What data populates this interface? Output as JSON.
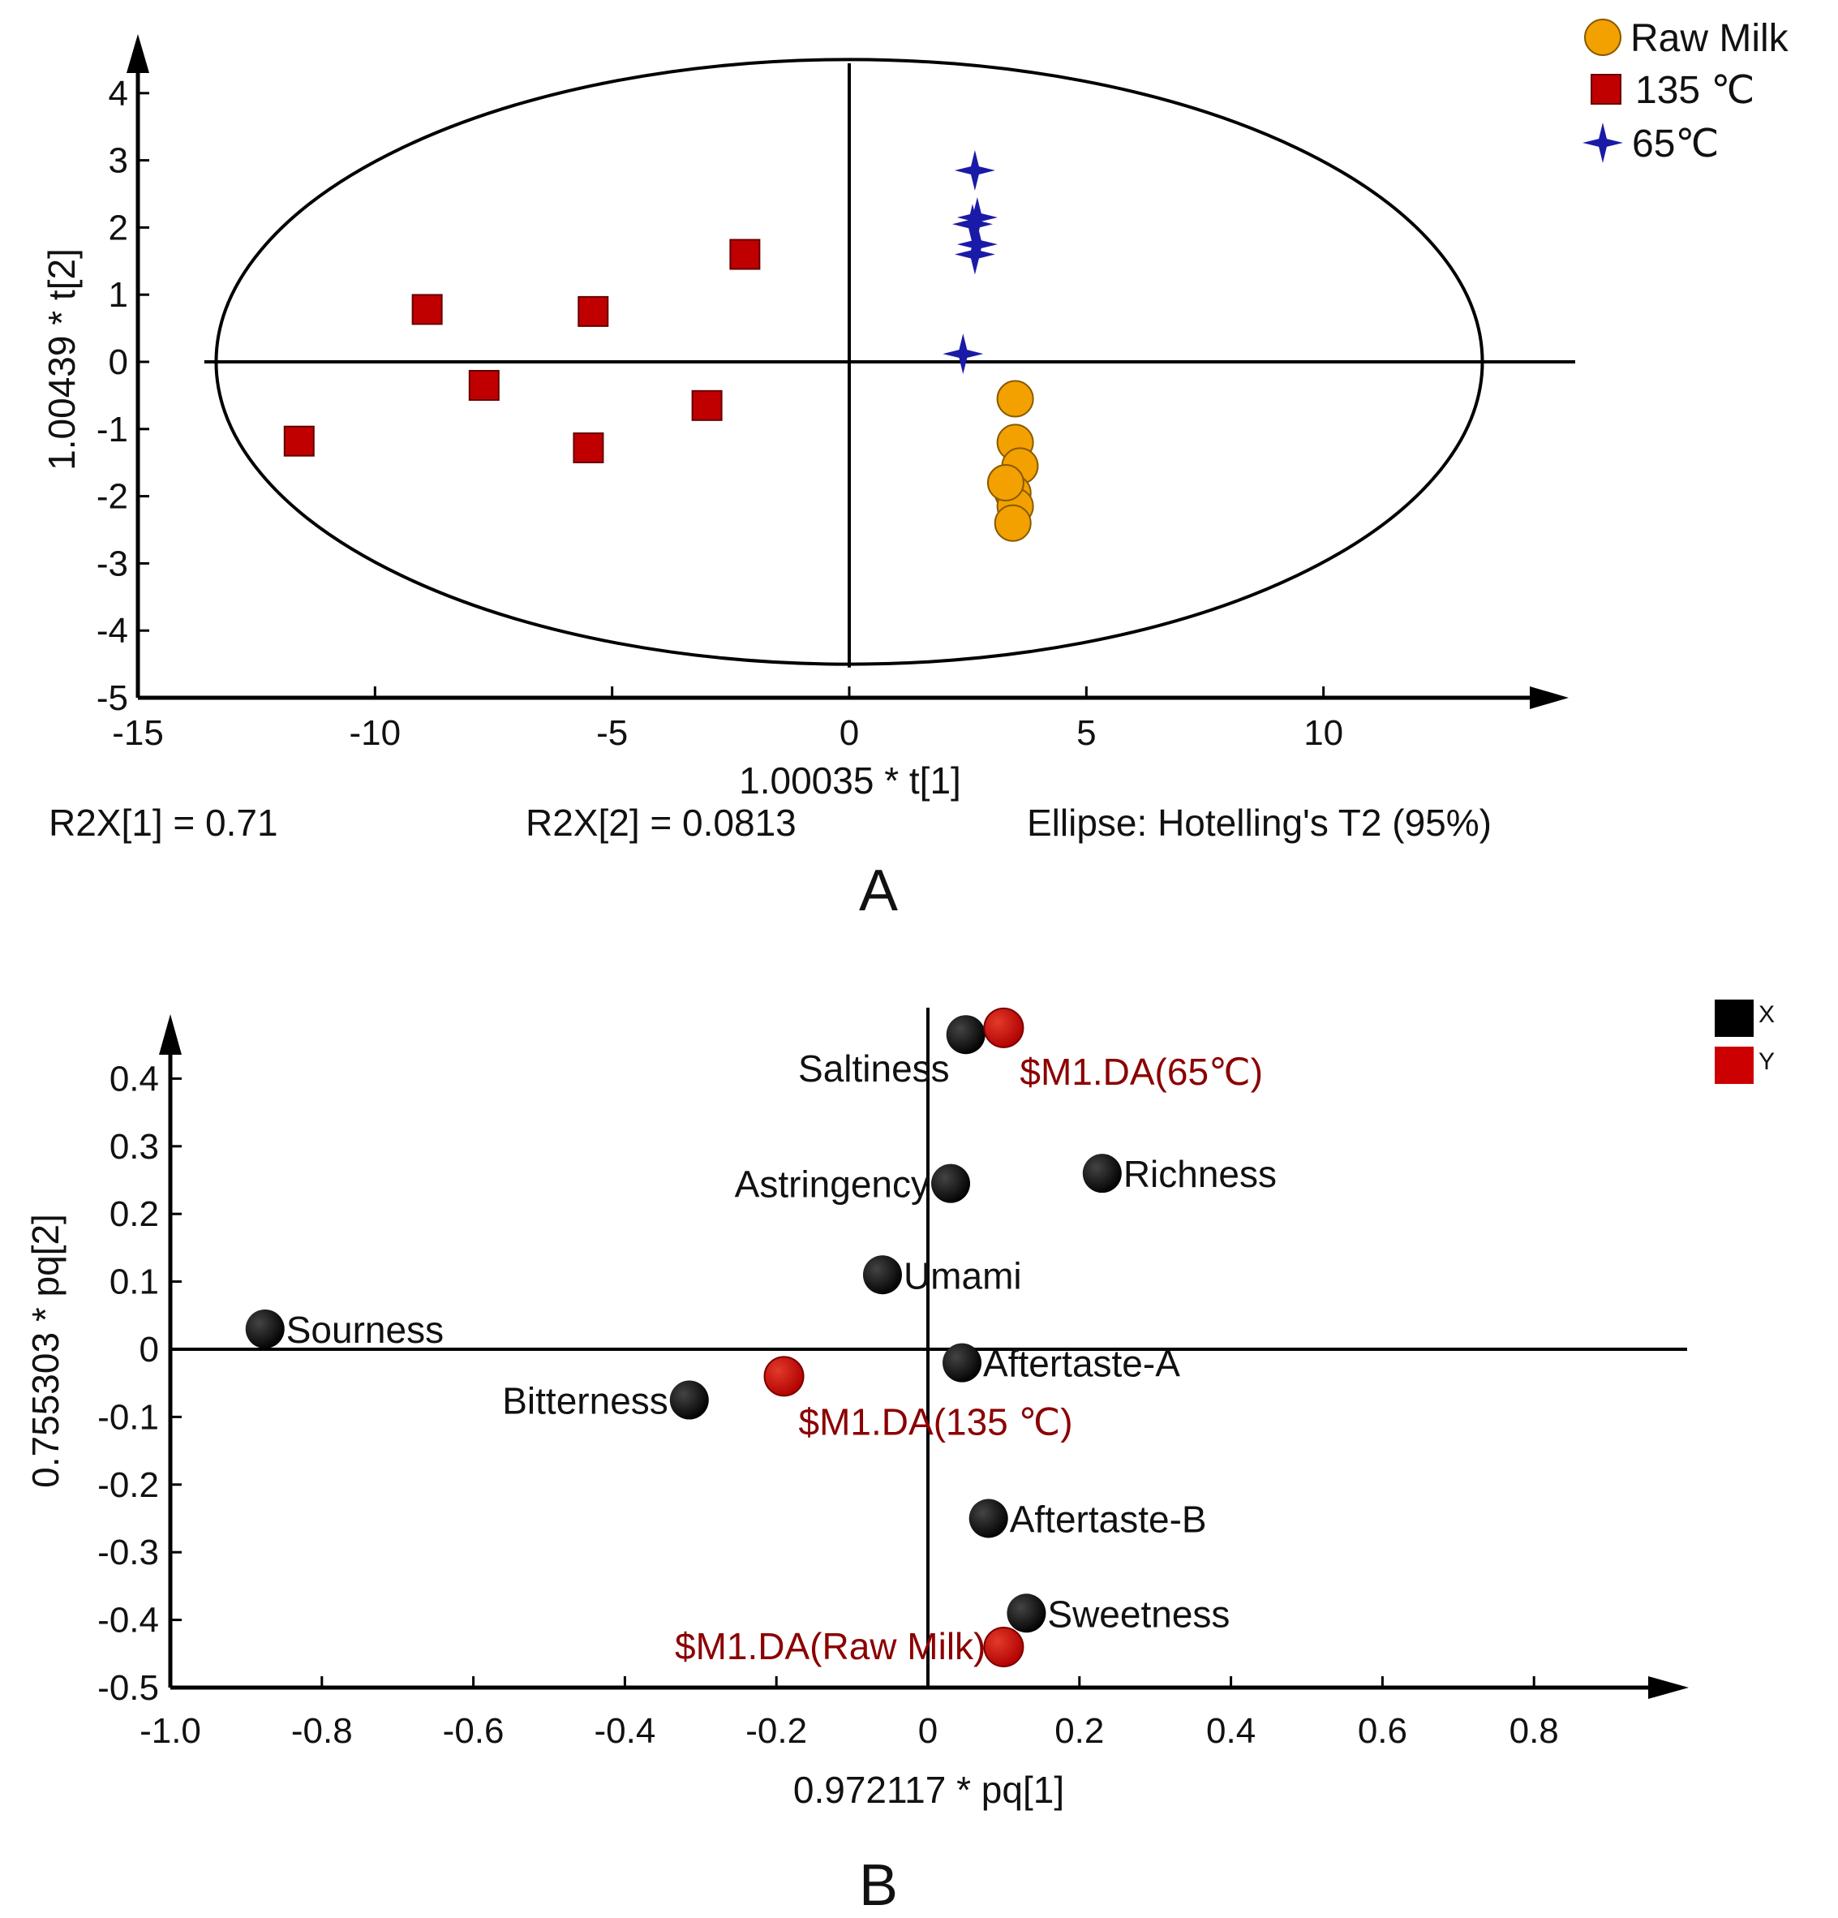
{
  "chart_data": [
    {
      "panel_label": "A",
      "type": "scatter",
      "xlabel": "1.00035 * t[1]",
      "ylabel": "1.00439 * t[2]",
      "xlim": [
        -15,
        15
      ],
      "ylim": [
        -5,
        4.5
      ],
      "xticks": [
        -15,
        -10,
        -5,
        0,
        5,
        10
      ],
      "yticks": [
        -5,
        -4,
        -3,
        -2,
        -1,
        0,
        1,
        2,
        3,
        4
      ],
      "ellipse": {
        "cx": 0,
        "cy": 0,
        "rx": 13.35,
        "ry": 4.5
      },
      "ellipse_label": "Ellipse: Hotelling's T2 (95%)",
      "stats": [
        "R2X[1] = 0.71",
        "R2X[2] = 0.0813"
      ],
      "legend": [
        {
          "name": "Raw Milk",
          "marker": "circle",
          "color": "#f2a100"
        },
        {
          "name": "135 ℃",
          "marker": "square",
          "color": "#c00000"
        },
        {
          "name": "65℃",
          "marker": "star",
          "color": "#1a1aa8"
        }
      ],
      "series": [
        {
          "name": "Raw Milk",
          "points": [
            [
              3.5,
              -0.55
            ],
            [
              3.5,
              -1.2
            ],
            [
              3.6,
              -1.55
            ],
            [
              3.45,
              -1.95
            ],
            [
              3.5,
              -2.15
            ],
            [
              3.3,
              -1.8
            ],
            [
              3.45,
              -2.4
            ]
          ]
        },
        {
          "name": "135 ℃",
          "points": [
            [
              -2.2,
              1.6
            ],
            [
              -8.9,
              0.78
            ],
            [
              -5.4,
              0.75
            ],
            [
              -7.7,
              -0.35
            ],
            [
              -3.0,
              -0.65
            ],
            [
              -11.6,
              -1.18
            ],
            [
              -5.5,
              -1.28
            ]
          ]
        },
        {
          "name": "65℃",
          "points": [
            [
              2.65,
              2.85
            ],
            [
              2.7,
              2.15
            ],
            [
              2.6,
              2.05
            ],
            [
              2.7,
              1.75
            ],
            [
              2.65,
              1.6
            ],
            [
              2.4,
              0.12
            ]
          ]
        }
      ]
    },
    {
      "panel_label": "B",
      "type": "scatter",
      "xlabel": "0.972117 * pq[1]",
      "ylabel": "0.755303 * pq[2]",
      "xlim": [
        -1,
        1
      ],
      "ylim": [
        -0.5,
        0.47
      ],
      "xticks": [
        -1,
        -0.8,
        -0.6,
        -0.4,
        -0.2,
        0,
        0.2,
        0.4,
        0.6,
        0.8
      ],
      "yticks": [
        -0.5,
        -0.4,
        -0.3,
        -0.2,
        -0.1,
        0,
        0.1,
        0.2,
        0.3,
        0.4
      ],
      "legend": [
        {
          "name": "X",
          "marker": "square",
          "color": "#000000"
        },
        {
          "name": "Y",
          "marker": "square",
          "color": "#cc0000"
        }
      ],
      "series": [
        {
          "name": "X",
          "points": [
            {
              "label": "Saltiness",
              "x": 0.05,
              "y": 0.465
            },
            {
              "label": "Astringency",
              "x": 0.03,
              "y": 0.245
            },
            {
              "label": "Richness",
              "x": 0.23,
              "y": 0.26
            },
            {
              "label": "Umami",
              "x": -0.06,
              "y": 0.11
            },
            {
              "label": "Sourness",
              "x": -0.875,
              "y": 0.03
            },
            {
              "label": "Aftertaste-A",
              "x": 0.045,
              "y": -0.02
            },
            {
              "label": "Bitterness",
              "x": -0.315,
              "y": -0.075
            },
            {
              "label": "Aftertaste-B",
              "x": 0.08,
              "y": -0.25
            },
            {
              "label": "Sweetness",
              "x": 0.13,
              "y": -0.39
            }
          ]
        },
        {
          "name": "Y",
          "points": [
            {
              "label": "$M1.DA(65℃)",
              "x": 0.1,
              "y": 0.475
            },
            {
              "label": "$M1.DA(135 ℃)",
              "x": -0.19,
              "y": -0.04
            },
            {
              "label": "$M1.DA(Raw Milk)",
              "x": 0.1,
              "y": -0.44
            }
          ]
        }
      ]
    }
  ]
}
